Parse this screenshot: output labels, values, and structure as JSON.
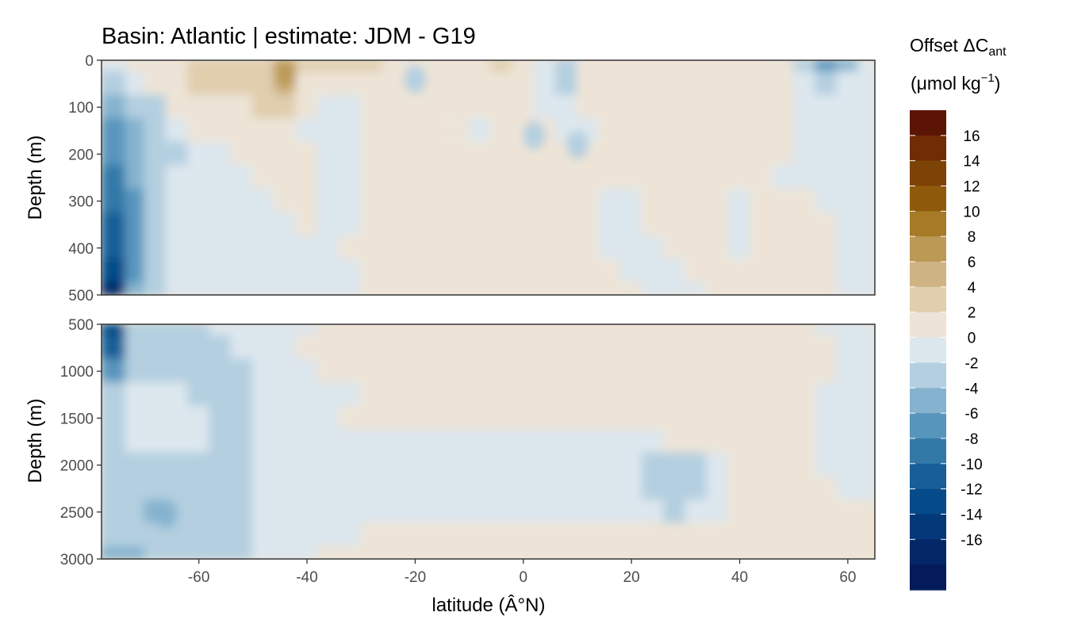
{
  "chart_data": {
    "type": "heatmap",
    "title": "Basin: Atlantic | estimate: JDM - G19",
    "xlabel": "latitude (Â°N)",
    "ylabel": "Depth (m)",
    "legend": {
      "title_line1_prefix": "Offset ",
      "title_line1_symbol": "ΔC",
      "title_line1_subscript": "ant",
      "title_line2": "(μmol kg",
      "title_line2_superscript": "−1",
      "title_line2_close": ")",
      "placement": "right",
      "breaks": [
        18,
        16,
        14,
        12,
        10,
        8,
        6,
        4,
        2,
        0,
        -2,
        -4,
        -6,
        -8,
        -10,
        -12,
        -14,
        -16,
        -18
      ],
      "labels": [
        "16",
        "14",
        "12",
        "10",
        "8",
        "6",
        "4",
        "2",
        "0",
        "-2",
        "-4",
        "-6",
        "-8",
        "-10",
        "-12",
        "-14",
        "-16"
      ],
      "colors": [
        "#5c1505",
        "#702d05",
        "#7d4205",
        "#8f5a0b",
        "#a67a27",
        "#bc9a56",
        "#cfb483",
        "#e0cead",
        "#ede4d7",
        "#dde7ee",
        "#b3cfe0",
        "#85b3cf",
        "#5895bd",
        "#3379a8",
        "#185f98",
        "#064b89",
        "#043879",
        "#042867",
        "#041a5b"
      ]
    },
    "x_ticks": [
      -60,
      -40,
      -20,
      0,
      20,
      40,
      60
    ],
    "xlim": [
      -78,
      65
    ],
    "panels": [
      {
        "name": "upper",
        "ylim": [
          0,
          500
        ],
        "y_ticks": [
          0,
          100,
          200,
          300,
          400,
          500
        ]
      },
      {
        "name": "lower",
        "ylim": [
          500,
          3000
        ],
        "y_ticks": [
          500,
          1000,
          1500,
          2000,
          2500,
          3000
        ]
      }
    ],
    "field_upper": {
      "lat": [
        -75,
        -72,
        -68,
        -64,
        -60,
        -56,
        -52,
        -48,
        -44,
        -40,
        -36,
        -32,
        -28,
        -24,
        -20,
        -16,
        -12,
        -8,
        -4,
        0,
        4,
        8,
        12,
        16,
        20,
        24,
        28,
        32,
        36,
        40,
        44,
        48,
        52,
        56,
        60,
        64
      ],
      "depth": [
        0,
        50,
        100,
        150,
        200,
        250,
        300,
        350,
        400,
        450,
        500
      ],
      "values": [
        [
          -0.5,
          0.5,
          1.5,
          2,
          2.5,
          3,
          3.5,
          4,
          7,
          3,
          3,
          4,
          2.5,
          2,
          1.5,
          1,
          1,
          2,
          2.5,
          2,
          0,
          -2,
          1,
          1.5,
          1,
          1,
          0.5,
          1,
          0.5,
          0.5,
          0.5,
          0.5,
          -2,
          -6,
          -4,
          -1
        ],
        [
          -3,
          -1.5,
          1,
          2,
          3,
          2.5,
          3,
          3.5,
          6,
          2,
          1,
          1.5,
          1.5,
          1,
          1,
          0.5,
          0.5,
          1,
          1,
          1,
          -1,
          -2.5,
          0.5,
          1,
          1,
          1,
          1,
          0.5,
          1,
          1.5,
          1,
          0.5,
          -0.5,
          -3,
          -1.5,
          -1
        ],
        [
          -5,
          -3,
          -2,
          0.5,
          1.5,
          1,
          2,
          2.5,
          3,
          0.5,
          -0.5,
          -1,
          0.5,
          0.5,
          0.5,
          0.5,
          0.5,
          0.5,
          0.5,
          0.5,
          -0.5,
          -0.5,
          0.5,
          0.5,
          0.5,
          0.5,
          0.5,
          0.5,
          1,
          0.5,
          0.5,
          0.5,
          -0.5,
          -0.5,
          -0.5,
          -1
        ],
        [
          -6,
          -4,
          -2.5,
          -1.5,
          0.5,
          0.5,
          1,
          1,
          1,
          -0.5,
          -1,
          -1,
          0.5,
          0.5,
          0.5,
          0.5,
          -0.5,
          -0.5,
          0.5,
          0.5,
          0.5,
          -1,
          -0.5,
          0.5,
          0.5,
          0.5,
          0.5,
          0.5,
          0.5,
          0.5,
          0.5,
          0.5,
          -0.5,
          -1,
          -1,
          -1
        ],
        [
          -7,
          -4.5,
          -2.5,
          -2,
          -1,
          -0.5,
          0.5,
          0.5,
          0.5,
          0.5,
          -1,
          -1,
          0.5,
          0.5,
          0.5,
          0.5,
          0.5,
          0.5,
          0.5,
          0.5,
          0.5,
          0.5,
          0.5,
          0.5,
          0.5,
          0.5,
          0.5,
          0.5,
          0.5,
          0.5,
          0.5,
          0.5,
          -0.5,
          -1,
          -1,
          -1
        ],
        [
          -8,
          -5,
          -2.5,
          -1.5,
          -1,
          -0.5,
          -0.5,
          0.5,
          0.5,
          0.5,
          -1,
          -1,
          0.5,
          0.5,
          0.5,
          0.5,
          0.5,
          0.5,
          0.5,
          0.5,
          0.5,
          0.5,
          0.5,
          0.5,
          0.5,
          0.5,
          0.5,
          0.5,
          0.5,
          0.5,
          0.5,
          -0.5,
          -0.5,
          -1,
          -1,
          -1
        ],
        [
          -9,
          -6,
          -2.5,
          -1,
          -1,
          -0.5,
          -0.5,
          -0.5,
          0.5,
          0.5,
          -0.5,
          -0.5,
          0.5,
          0.5,
          0.5,
          0.5,
          0.5,
          0.5,
          0.5,
          0.5,
          0.5,
          0.5,
          0.5,
          -0.5,
          -0.5,
          0.5,
          0.5,
          0.5,
          0.5,
          -0.5,
          0.5,
          0.5,
          0.5,
          -1,
          -1,
          -1
        ],
        [
          -10,
          -6,
          -2.5,
          -1,
          -1,
          -0.5,
          -0.5,
          -0.5,
          -0.5,
          0.5,
          -0.5,
          -0.5,
          0.5,
          0.5,
          0.5,
          0.5,
          0.5,
          0.5,
          0.5,
          0.5,
          0.5,
          0.5,
          0.5,
          -0.5,
          -0.5,
          0.5,
          0.5,
          0.5,
          0.5,
          -0.5,
          0.5,
          0.5,
          0.5,
          0.5,
          -1,
          -1
        ],
        [
          -11,
          -6,
          -2.5,
          -1,
          -1,
          -0.5,
          -0.5,
          -0.5,
          -0.5,
          -0.5,
          -0.5,
          0.5,
          0.5,
          0.5,
          0.5,
          0.5,
          0.5,
          0.5,
          0.5,
          0.5,
          0.5,
          0.5,
          0.5,
          -0.5,
          -0.5,
          -0.5,
          0.5,
          0.5,
          0.5,
          -0.5,
          0.5,
          0.5,
          0.5,
          0.5,
          -1,
          -1
        ],
        [
          -13,
          -6,
          -2.5,
          -1,
          -0.5,
          -0.5,
          -0.5,
          -0.5,
          -0.5,
          -0.5,
          -0.5,
          -0.5,
          0.5,
          0.5,
          0.5,
          0.5,
          0.5,
          0.5,
          0.5,
          0.5,
          0.5,
          0.5,
          0.5,
          0.5,
          -0.5,
          -0.5,
          -0.5,
          0.5,
          0.5,
          0.5,
          0.5,
          0.5,
          0.5,
          0.5,
          -1,
          -1
        ],
        [
          -17,
          -5,
          -2,
          -1,
          -0.5,
          -0.5,
          -0.5,
          -0.5,
          -0.5,
          -0.5,
          -0.5,
          -0.5,
          0.5,
          0.5,
          0.5,
          0.5,
          0.5,
          0.5,
          0.5,
          0.5,
          0.5,
          0.5,
          0.5,
          0.5,
          0.5,
          -0.5,
          -0.5,
          -0.5,
          0.5,
          0.5,
          0.5,
          0.5,
          0.5,
          0.5,
          -1,
          -1
        ]
      ],
      "patches": [
        {
          "lat": -44,
          "depth": 30,
          "value": 8
        },
        {
          "lat": 2,
          "depth": 160,
          "value": -2
        },
        {
          "lat": 10,
          "depth": 180,
          "value": -2
        },
        {
          "lat": 0,
          "depth": 280,
          "value": 2
        },
        {
          "lat": -20,
          "depth": 40,
          "value": -2
        },
        {
          "lat": -12,
          "depth": 150,
          "value": 1
        }
      ]
    },
    "field_lower": {
      "lat": [
        -75,
        -72,
        -68,
        -64,
        -60,
        -56,
        -52,
        -48,
        -44,
        -40,
        -36,
        -32,
        -28,
        -24,
        -20,
        -16,
        -12,
        -8,
        -4,
        0,
        4,
        8,
        12,
        16,
        20,
        24,
        28,
        32,
        36,
        40,
        44,
        48,
        52,
        56,
        60,
        64
      ],
      "depth": [
        500,
        750,
        1000,
        1250,
        1500,
        1750,
        2000,
        2250,
        2500,
        2750,
        3000
      ],
      "values": [
        [
          -13,
          -3,
          -2.5,
          -2,
          -2,
          -1.5,
          -1,
          -1,
          -0.5,
          -0.5,
          0.5,
          0.5,
          0.5,
          0.5,
          0.5,
          0.5,
          0.5,
          0.5,
          0.5,
          0.5,
          0.5,
          0.5,
          0.5,
          0.5,
          0.5,
          0.5,
          0.5,
          0.5,
          0.5,
          0.5,
          0.5,
          0.5,
          0.5,
          -0.5,
          -1,
          -1
        ],
        [
          -11,
          -3,
          -2.5,
          -2.5,
          -2,
          -2,
          -1.5,
          -1,
          -0.5,
          0.5,
          0.5,
          0.5,
          0.5,
          0.5,
          0.5,
          0.5,
          0.5,
          0.5,
          0.5,
          0.5,
          0.5,
          0.5,
          0.5,
          0.5,
          0.5,
          0.5,
          0.5,
          0.5,
          0.5,
          0.5,
          0.5,
          0.5,
          0.5,
          0.5,
          -1,
          -1
        ],
        [
          -6,
          -2.5,
          -2,
          -2,
          -2,
          -2,
          -2,
          -1,
          -0.5,
          -0.5,
          0.5,
          0.5,
          0.5,
          0.5,
          0.5,
          0.5,
          0.5,
          0.5,
          0.5,
          0.5,
          0.5,
          0.5,
          0.5,
          2,
          0.5,
          0.5,
          0.5,
          0.5,
          0.5,
          0.5,
          0.5,
          0.5,
          0.5,
          0.5,
          -0.5,
          -1
        ],
        [
          -2,
          -1,
          -1,
          -1.5,
          -2,
          -2.5,
          -2,
          -1,
          -1,
          -0.5,
          -0.5,
          -0.5,
          0.5,
          0.5,
          0.5,
          0.5,
          0.5,
          0.5,
          0.5,
          0.5,
          0.5,
          0.5,
          0.5,
          0.5,
          0.5,
          0.5,
          0.5,
          0.5,
          0.5,
          0.5,
          0.5,
          0.5,
          0.5,
          -0.5,
          -0.5,
          -1
        ],
        [
          -2,
          -1,
          -1,
          -1,
          -1.5,
          -2.5,
          -2.5,
          -1,
          -1,
          -0.5,
          -0.5,
          0.5,
          0.5,
          0.5,
          0.5,
          0.5,
          0.5,
          0.5,
          0.5,
          0.5,
          0.5,
          0.5,
          0.5,
          0.5,
          0.5,
          0.5,
          0.5,
          0.5,
          0.5,
          0.5,
          0.5,
          0.5,
          0.5,
          -0.5,
          -0.5,
          -1
        ],
        [
          -2,
          -1,
          -1,
          -1,
          -1.5,
          -2.5,
          -2.5,
          -1,
          -1,
          -0.5,
          -0.5,
          -0.5,
          -0.5,
          -0.5,
          -0.5,
          -0.5,
          -0.5,
          -0.5,
          -0.5,
          -0.5,
          -0.5,
          -0.5,
          -0.5,
          -0.5,
          -0.5,
          -0.5,
          0.5,
          0.5,
          0.5,
          0.5,
          0.5,
          0.5,
          0.5,
          -0.5,
          -0.5,
          -1
        ],
        [
          -2.5,
          -2.5,
          -2.5,
          -2.5,
          -2.5,
          -2.5,
          -2.5,
          -1,
          -1,
          -0.5,
          -0.5,
          -0.5,
          -0.5,
          -0.5,
          -0.5,
          -0.5,
          -0.5,
          -0.5,
          -0.5,
          -0.5,
          -0.5,
          -0.5,
          -0.5,
          -0.5,
          -0.5,
          -2.5,
          -2.5,
          -2.5,
          -0.5,
          0.5,
          0.5,
          0.5,
          0.5,
          -0.5,
          -0.5,
          -1
        ],
        [
          -2.5,
          -2.5,
          -2.5,
          -3,
          -2.5,
          -2.5,
          -2.5,
          -1,
          -1,
          -0.5,
          -0.5,
          -0.5,
          -0.5,
          -0.5,
          -0.5,
          -0.5,
          -0.5,
          -0.5,
          -0.5,
          -0.5,
          -0.5,
          -0.5,
          -0.5,
          -0.5,
          -0.5,
          -2.5,
          -2.5,
          -2.5,
          -0.5,
          0.5,
          0.5,
          0.5,
          0.5,
          0.5,
          -0.5,
          -1
        ],
        [
          -2.5,
          -3,
          -4.5,
          -2.5,
          -2.5,
          -2.5,
          -2.5,
          -1,
          -1,
          -0.5,
          -0.5,
          -0.5,
          -0.5,
          -0.5,
          -0.5,
          -0.5,
          -0.5,
          -0.5,
          -0.5,
          -0.5,
          -0.5,
          -0.5,
          -0.5,
          -0.5,
          -0.5,
          -0.5,
          -2.5,
          -0.5,
          -0.5,
          0.5,
          0.5,
          0.5,
          0.5,
          0.5,
          2,
          2
        ],
        [
          -3.5,
          -3.5,
          -2.5,
          -2.5,
          -2.5,
          -2.5,
          -2.5,
          -1,
          -0.5,
          -0.5,
          -0.5,
          -0.5,
          0.5,
          0.5,
          0.5,
          0.5,
          0.5,
          0.5,
          0.5,
          0.5,
          0.5,
          0.5,
          0.5,
          0.5,
          0.5,
          0.5,
          0.5,
          0.5,
          0.5,
          0.5,
          0.5,
          0.5,
          0.5,
          2,
          2,
          2
        ],
        [
          -4,
          -4,
          -2.5,
          -2.5,
          -2.5,
          -2.5,
          -2.5,
          -1,
          -0.5,
          -0.5,
          0.5,
          0.5,
          0.5,
          0.5,
          0.5,
          0.5,
          0.5,
          0.5,
          0.5,
          0.5,
          0.5,
          0.5,
          0.5,
          0.5,
          0.5,
          0.5,
          0.5,
          0.5,
          0.5,
          0.5,
          0.5,
          0.5,
          2,
          2,
          2,
          2
        ]
      ],
      "patches": [
        {
          "lat": 28,
          "depth": 2150,
          "value": -2.5
        },
        {
          "lat": 10,
          "depth": 1190,
          "value": 2
        },
        {
          "lat": -66,
          "depth": 2520,
          "value": -5
        }
      ]
    }
  }
}
